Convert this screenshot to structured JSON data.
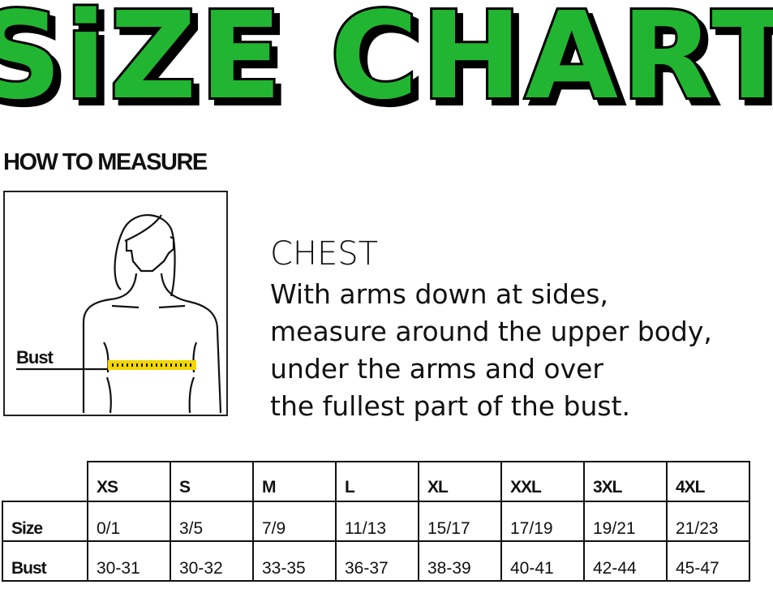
{
  "title": "SiZE CHART",
  "title_colors": {
    "fill": "#22b532",
    "outline": "#000000"
  },
  "how_to_measure": "HOW TO MEASURE",
  "figure": {
    "label": "Bust",
    "tape_color": "#f2d600"
  },
  "chest": {
    "title": "CHEST",
    "lines": [
      "With arms down at sides,",
      "measure around the upper body,",
      "under the arms and over",
      "the fullest part of the bust."
    ]
  },
  "table": {
    "headers": [
      "XS",
      "S",
      "M",
      "L",
      "XL",
      "XXL",
      "3XL",
      "4XL"
    ],
    "rows": [
      {
        "label": "Size",
        "values": [
          "0/1",
          "3/5",
          "7/9",
          "11/13",
          "15/17",
          "17/19",
          "19/21",
          "21/23"
        ]
      },
      {
        "label": "Bust",
        "values": [
          "30-31",
          "30-32",
          "33-35",
          "36-37",
          "38-39",
          "40-41",
          "42-44",
          "45-47"
        ]
      }
    ]
  }
}
